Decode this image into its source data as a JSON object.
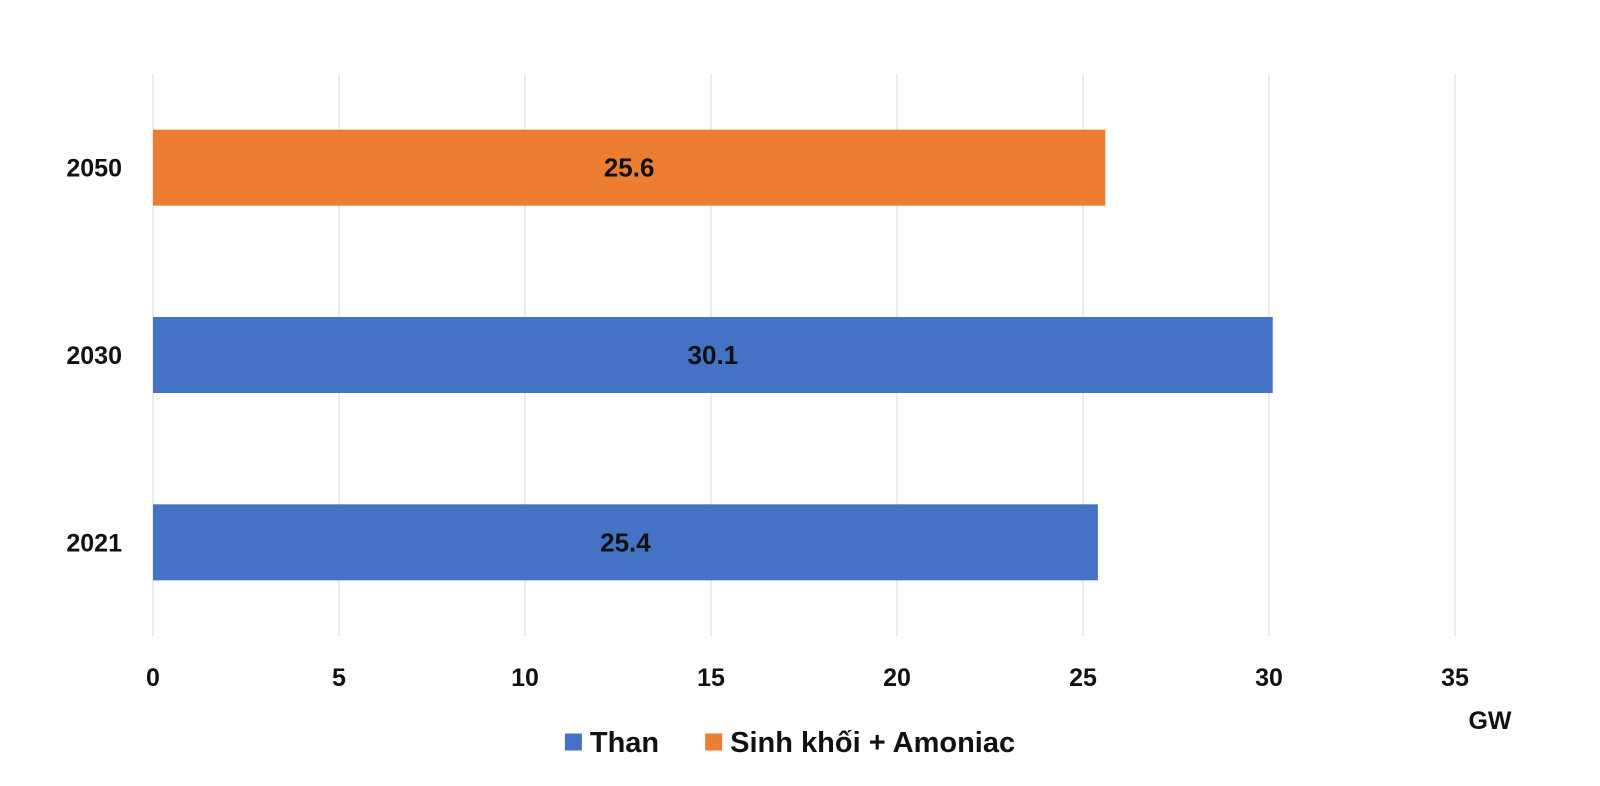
{
  "chart_data": {
    "type": "bar",
    "orientation": "horizontal",
    "categories": [
      "2050",
      "2030",
      "2021"
    ],
    "series": [
      {
        "name": "Than",
        "color": "#4472C4",
        "values": [
          null,
          30.1,
          25.4
        ]
      },
      {
        "name": "Sinh khối + Amoniac",
        "color": "#ED7D31",
        "values": [
          25.6,
          null,
          null
        ]
      }
    ],
    "bars": [
      {
        "category": "2050",
        "series": "Sinh khối + Amoniac",
        "value": 25.6,
        "label": "25.6"
      },
      {
        "category": "2030",
        "series": "Than",
        "value": 30.1,
        "label": "30.1"
      },
      {
        "category": "2021",
        "series": "Than",
        "value": 25.4,
        "label": "25.4"
      }
    ],
    "xlim": [
      0,
      35
    ],
    "xticks": [
      "0",
      "5",
      "10",
      "15",
      "20",
      "25",
      "30",
      "35"
    ],
    "xunit": "GW",
    "grid": true,
    "legend_position": "bottom"
  }
}
